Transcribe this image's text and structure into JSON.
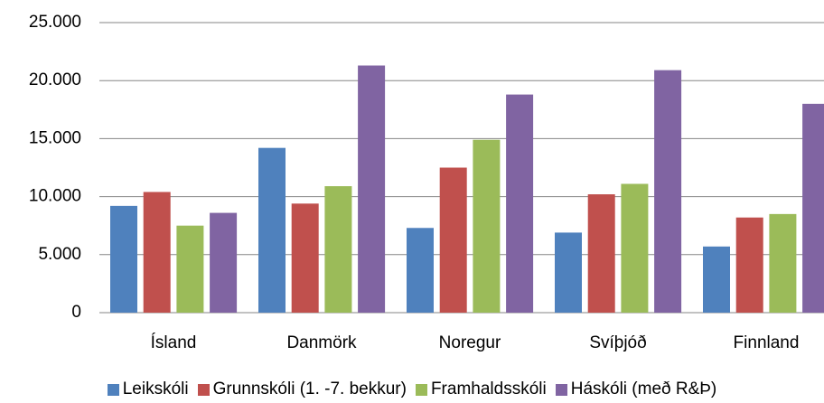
{
  "chart_data": {
    "type": "bar",
    "categories": [
      "Ísland",
      "Danmörk",
      "Noregur",
      "Svíþjóð",
      "Finnland"
    ],
    "series": [
      {
        "name": "Leikskóli",
        "color": "#4f81bd",
        "values": [
          9200,
          14200,
          7300,
          6900,
          5700
        ]
      },
      {
        "name": "Grunnskóli (1. -7. bekkur)",
        "color": "#c0504d",
        "values": [
          10400,
          9400,
          12500,
          10200,
          8200
        ]
      },
      {
        "name": "Framhaldsskóli",
        "color": "#9bbb59",
        "values": [
          7500,
          10900,
          14900,
          11100,
          8500
        ]
      },
      {
        "name": "Háskóli (með R&Þ)",
        "color": "#8064a2",
        "values": [
          8600,
          21300,
          18800,
          20900,
          18000
        ]
      }
    ],
    "ylim": [
      0,
      25000
    ],
    "yticks": [
      0,
      {
        "value": 5000,
        "label": "5.000"
      },
      {
        "value": 10000,
        "label": "10.000"
      },
      {
        "value": 15000,
        "label": "15.000"
      },
      {
        "value": 20000,
        "label": "20.000"
      },
      {
        "value": 25000,
        "label": "25.000"
      }
    ],
    "grid": true,
    "legend": "bottom"
  }
}
